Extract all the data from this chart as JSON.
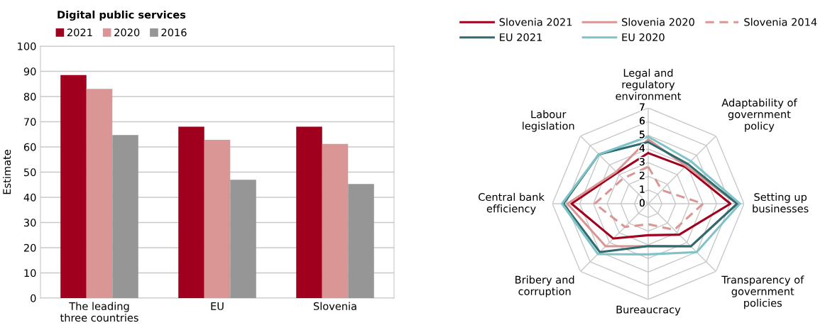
{
  "chart_data": [
    {
      "type": "bar",
      "title": "Digital public services",
      "ylabel": "Estimate",
      "categories": [
        "The leading\nthree countries",
        "EU",
        "Slovenia"
      ],
      "series": [
        {
          "name": "2021",
          "color": "#a0001e",
          "values": [
            88.5,
            68,
            68
          ]
        },
        {
          "name": "2020",
          "color": "#d99694",
          "values": [
            83,
            62.8,
            61.2
          ]
        },
        {
          "name": "2016",
          "color": "#969696",
          "values": [
            64.7,
            47,
            45.3
          ]
        }
      ],
      "ylim": [
        0,
        100
      ],
      "yticks": [
        0,
        10,
        20,
        30,
        40,
        50,
        60,
        70,
        80,
        90,
        100
      ],
      "grid": "y",
      "legend": "top left"
    },
    {
      "type": "radar",
      "categories": [
        "Legal and\nregulatory\nenvironment",
        "Adaptability of\ngovernment\npolicy",
        "Setting up\nbusinesses",
        "Transparency of\ngovernment\npolicies",
        "Bureaucracy",
        "Bribery and\ncorruption",
        "Central bank\nefficiency",
        "Labour\nlegislation"
      ],
      "series": [
        {
          "name": "Slovenia 2021",
          "color": "#a0001e",
          "line_style": "solid",
          "values": [
            3.7,
            3.8,
            6.0,
            3.2,
            2.3,
            3.6,
            5.6,
            3.2
          ]
        },
        {
          "name": "Slovenia 2020",
          "color": "#d99694",
          "line_style": "solid",
          "values": [
            4.7,
            3.9,
            6.5,
            4.4,
            3.1,
            4.4,
            5.9,
            3.3
          ]
        },
        {
          "name": "Slovenia 2014",
          "color": "#d99694",
          "line_style": "dashed",
          "values": [
            2.7,
            1.4,
            4.0,
            2.7,
            1.5,
            2.4,
            3.9,
            2.6
          ]
        },
        {
          "name": "EU 2021",
          "color": "#2e6b6e",
          "line_style": "solid",
          "values": [
            4.5,
            4.1,
            6.5,
            4.4,
            3.1,
            5.0,
            6.2,
            5.1
          ]
        },
        {
          "name": "EU 2020",
          "color": "#7fc3c8",
          "line_style": "solid",
          "values": [
            4.9,
            4.4,
            6.7,
            5.0,
            3.7,
            5.2,
            6.3,
            5.1
          ]
        }
      ],
      "ylim": [
        0,
        7
      ],
      "yticks": [
        0,
        1,
        2,
        3,
        4,
        5,
        6,
        7
      ],
      "grid": true,
      "legend": "top"
    }
  ]
}
